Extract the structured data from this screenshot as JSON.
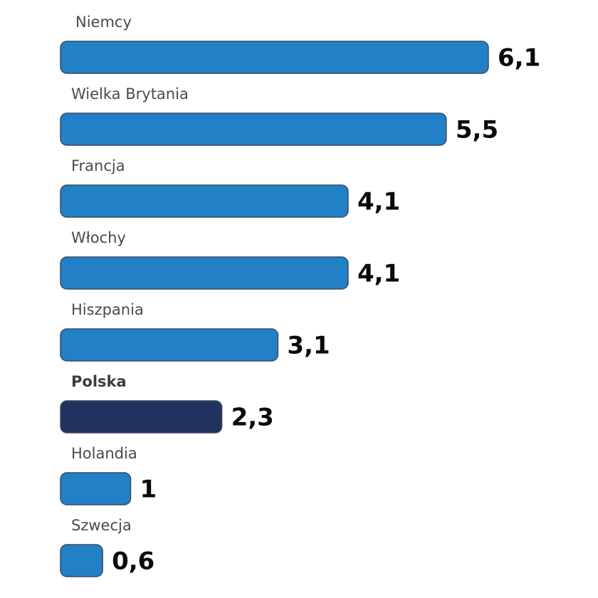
{
  "chart_data": {
    "type": "bar",
    "orientation": "horizontal",
    "categories": [
      "Niemcy",
      "Wielka Brytania",
      "Francja",
      "Włochy",
      "Hiszpania",
      "Polska",
      "Holandia",
      "Szwecja"
    ],
    "value_labels": [
      "6,1",
      "5,5",
      "4,1",
      "4,1",
      "3,1",
      "2,3",
      "1",
      "0,6"
    ],
    "series": [
      {
        "values": [
          6.1,
          5.5,
          4.1,
          4.1,
          3.1,
          2.3,
          1.0,
          0.6
        ]
      }
    ],
    "highlight_category": "Polska",
    "colors": {
      "bar": "#2180c6",
      "highlight": "#22325f",
      "label": "#4a4a4a",
      "value": "#0a0a0a"
    },
    "xlim": [
      0,
      6.1
    ],
    "grid": false,
    "legend": "none"
  }
}
